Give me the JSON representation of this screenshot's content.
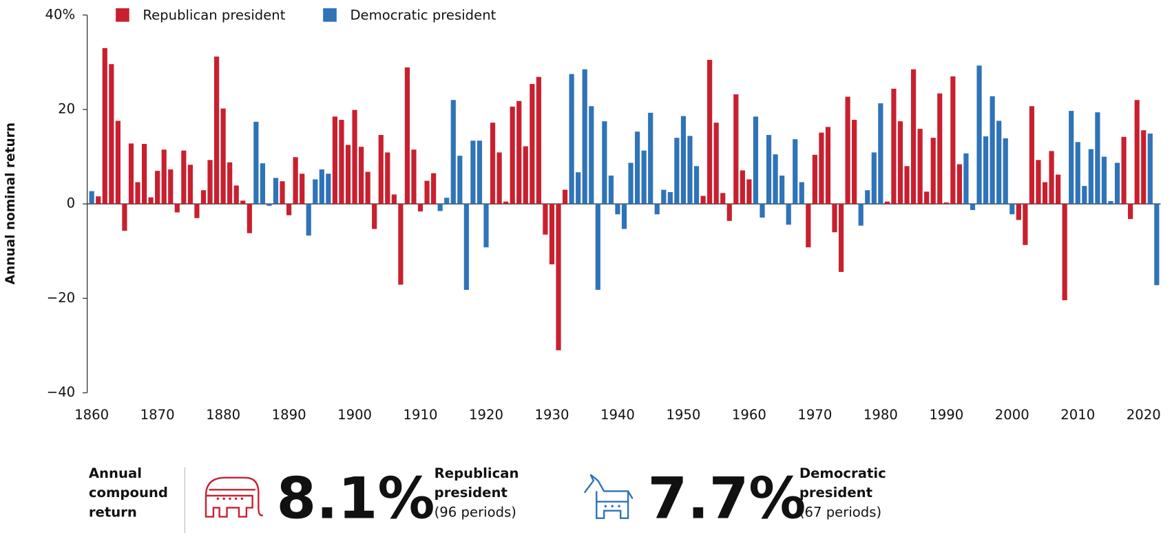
{
  "chart_data": {
    "type": "bar",
    "y_label": "Annual nominal return",
    "x": [
      1860,
      1861,
      1862,
      1863,
      1864,
      1865,
      1866,
      1867,
      1868,
      1869,
      1870,
      1871,
      1872,
      1873,
      1874,
      1875,
      1876,
      1877,
      1878,
      1879,
      1880,
      1881,
      1882,
      1883,
      1884,
      1885,
      1886,
      1887,
      1888,
      1889,
      1890,
      1891,
      1892,
      1893,
      1894,
      1895,
      1896,
      1897,
      1898,
      1899,
      1900,
      1901,
      1902,
      1903,
      1904,
      1905,
      1906,
      1907,
      1908,
      1909,
      1910,
      1911,
      1912,
      1913,
      1914,
      1915,
      1916,
      1917,
      1918,
      1919,
      1920,
      1921,
      1922,
      1923,
      1924,
      1925,
      1926,
      1927,
      1928,
      1929,
      1930,
      1931,
      1932,
      1933,
      1934,
      1935,
      1936,
      1937,
      1938,
      1939,
      1940,
      1941,
      1942,
      1943,
      1944,
      1945,
      1946,
      1947,
      1948,
      1949,
      1950,
      1951,
      1952,
      1953,
      1954,
      1955,
      1956,
      1957,
      1958,
      1959,
      1960,
      1961,
      1962,
      1963,
      1964,
      1965,
      1966,
      1967,
      1968,
      1969,
      1970,
      1971,
      1972,
      1973,
      1974,
      1975,
      1976,
      1977,
      1978,
      1979,
      1980,
      1981,
      1982,
      1983,
      1984,
      1985,
      1986,
      1987,
      1988,
      1989,
      1990,
      1991,
      1992,
      1993,
      1994,
      1995,
      1996,
      1997,
      1998,
      1999,
      2000,
      2001,
      2002,
      2003,
      2004,
      2005,
      2006,
      2007,
      2008,
      2009,
      2010,
      2011,
      2012,
      2013,
      2014,
      2015,
      2016,
      2017,
      2018,
      2019,
      2020,
      2021,
      2022
    ],
    "series": [
      {
        "name": "Republican president",
        "color": "#c8202f",
        "values": [
          null,
          1.6,
          33,
          29.6,
          17.6,
          -5.7,
          12.8,
          4.6,
          12.7,
          1.4,
          7.0,
          11.5,
          7.3,
          -1.8,
          11.3,
          8.3,
          -3.0,
          2.9,
          9.3,
          31.2,
          20.2,
          8.8,
          3.9,
          0.7,
          -6.2,
          null,
          null,
          null,
          null,
          4.8,
          -2.4,
          9.9,
          6.4,
          null,
          null,
          null,
          null,
          18.5,
          17.8,
          12.5,
          19.9,
          12.1,
          6.8,
          -5.3,
          14.6,
          10.9,
          2.0,
          -17.1,
          28.9,
          11.5,
          -1.6,
          4.9,
          6.5,
          null,
          null,
          null,
          null,
          null,
          null,
          null,
          null,
          17.2,
          10.9,
          0.5,
          20.6,
          21.8,
          12.2,
          25.4,
          26.9,
          -6.5,
          -12.8,
          -31.0,
          3.0,
          null,
          null,
          null,
          null,
          null,
          null,
          null,
          null,
          null,
          null,
          null,
          null,
          null,
          null,
          null,
          null,
          null,
          null,
          null,
          null,
          1.7,
          30.5,
          17.2,
          2.3,
          -3.6,
          23.2,
          7.1,
          5.2,
          null,
          null,
          null,
          null,
          null,
          null,
          null,
          null,
          -9.2,
          10.4,
          15.1,
          16.3,
          -6.0,
          -14.4,
          22.7,
          17.8,
          null,
          null,
          null,
          null,
          0.5,
          24.4,
          17.5,
          8.0,
          28.5,
          15.9,
          2.6,
          14.0,
          23.4,
          0.3,
          27.0,
          8.4,
          null,
          null,
          null,
          null,
          null,
          null,
          null,
          null,
          -3.4,
          -8.7,
          20.7,
          9.3,
          4.6,
          11.2,
          6.2,
          -20.4,
          null,
          null,
          null,
          null,
          null,
          null,
          null,
          null,
          14.2,
          -3.2,
          22.0,
          15.6,
          null,
          null
        ]
      },
      {
        "name": "Democratic president",
        "color": "#2f73b8",
        "values": [
          2.7,
          null,
          null,
          null,
          null,
          null,
          null,
          null,
          null,
          null,
          null,
          null,
          null,
          null,
          null,
          null,
          null,
          null,
          null,
          null,
          null,
          null,
          null,
          null,
          null,
          17.4,
          8.6,
          -0.4,
          5.5,
          null,
          null,
          null,
          null,
          -6.7,
          5.2,
          7.3,
          6.4,
          null,
          null,
          null,
          null,
          null,
          null,
          null,
          null,
          null,
          null,
          null,
          null,
          null,
          null,
          null,
          null,
          -1.5,
          1.3,
          22.0,
          10.2,
          -18.2,
          13.4,
          13.4,
          -9.2,
          null,
          null,
          null,
          null,
          null,
          null,
          null,
          null,
          null,
          null,
          null,
          null,
          27.5,
          6.7,
          28.5,
          20.7,
          -18.2,
          17.5,
          6.0,
          -2.2,
          -5.3,
          8.7,
          15.3,
          11.3,
          19.3,
          -2.2,
          3.0,
          2.5,
          14.0,
          18.6,
          14.4,
          8.0,
          null,
          null,
          null,
          null,
          null,
          null,
          null,
          null,
          18.5,
          -2.9,
          14.6,
          10.5,
          6.0,
          -4.4,
          13.7,
          4.6,
          null,
          null,
          null,
          null,
          null,
          null,
          null,
          null,
          -4.6,
          2.9,
          10.9,
          21.3,
          null,
          null,
          null,
          null,
          null,
          null,
          null,
          null,
          null,
          null,
          null,
          null,
          10.7,
          -1.3,
          29.3,
          14.3,
          22.8,
          17.6,
          13.9,
          -2.2,
          null,
          null,
          null,
          null,
          null,
          null,
          null,
          null,
          19.7,
          13.1,
          3.8,
          11.6,
          19.4,
          10.0,
          0.6,
          8.7,
          null,
          null,
          null,
          null,
          14.9,
          -17.2
        ]
      }
    ],
    "xlim": [
      1859.2,
      2022.6
    ],
    "xticks": [
      1860,
      1870,
      1880,
      1890,
      1900,
      1910,
      1920,
      1930,
      1940,
      1950,
      1960,
      1970,
      1980,
      1990,
      2000,
      2010,
      2020
    ],
    "ylim": [
      -40,
      40
    ],
    "yticks": [
      {
        "value": -40,
        "label": "−40"
      },
      {
        "value": -20,
        "label": "−20"
      },
      0,
      20,
      {
        "value": 40,
        "label": "40%"
      }
    ],
    "grid": false,
    "legend": "top-left"
  },
  "summary": {
    "label": "Annual compound return",
    "items": [
      {
        "value": "8.1%",
        "name": "Republican president",
        "periods": "(96 periods)"
      },
      {
        "value": "7.7%",
        "name": "Democratic president",
        "periods": "(67 periods)"
      }
    ]
  }
}
